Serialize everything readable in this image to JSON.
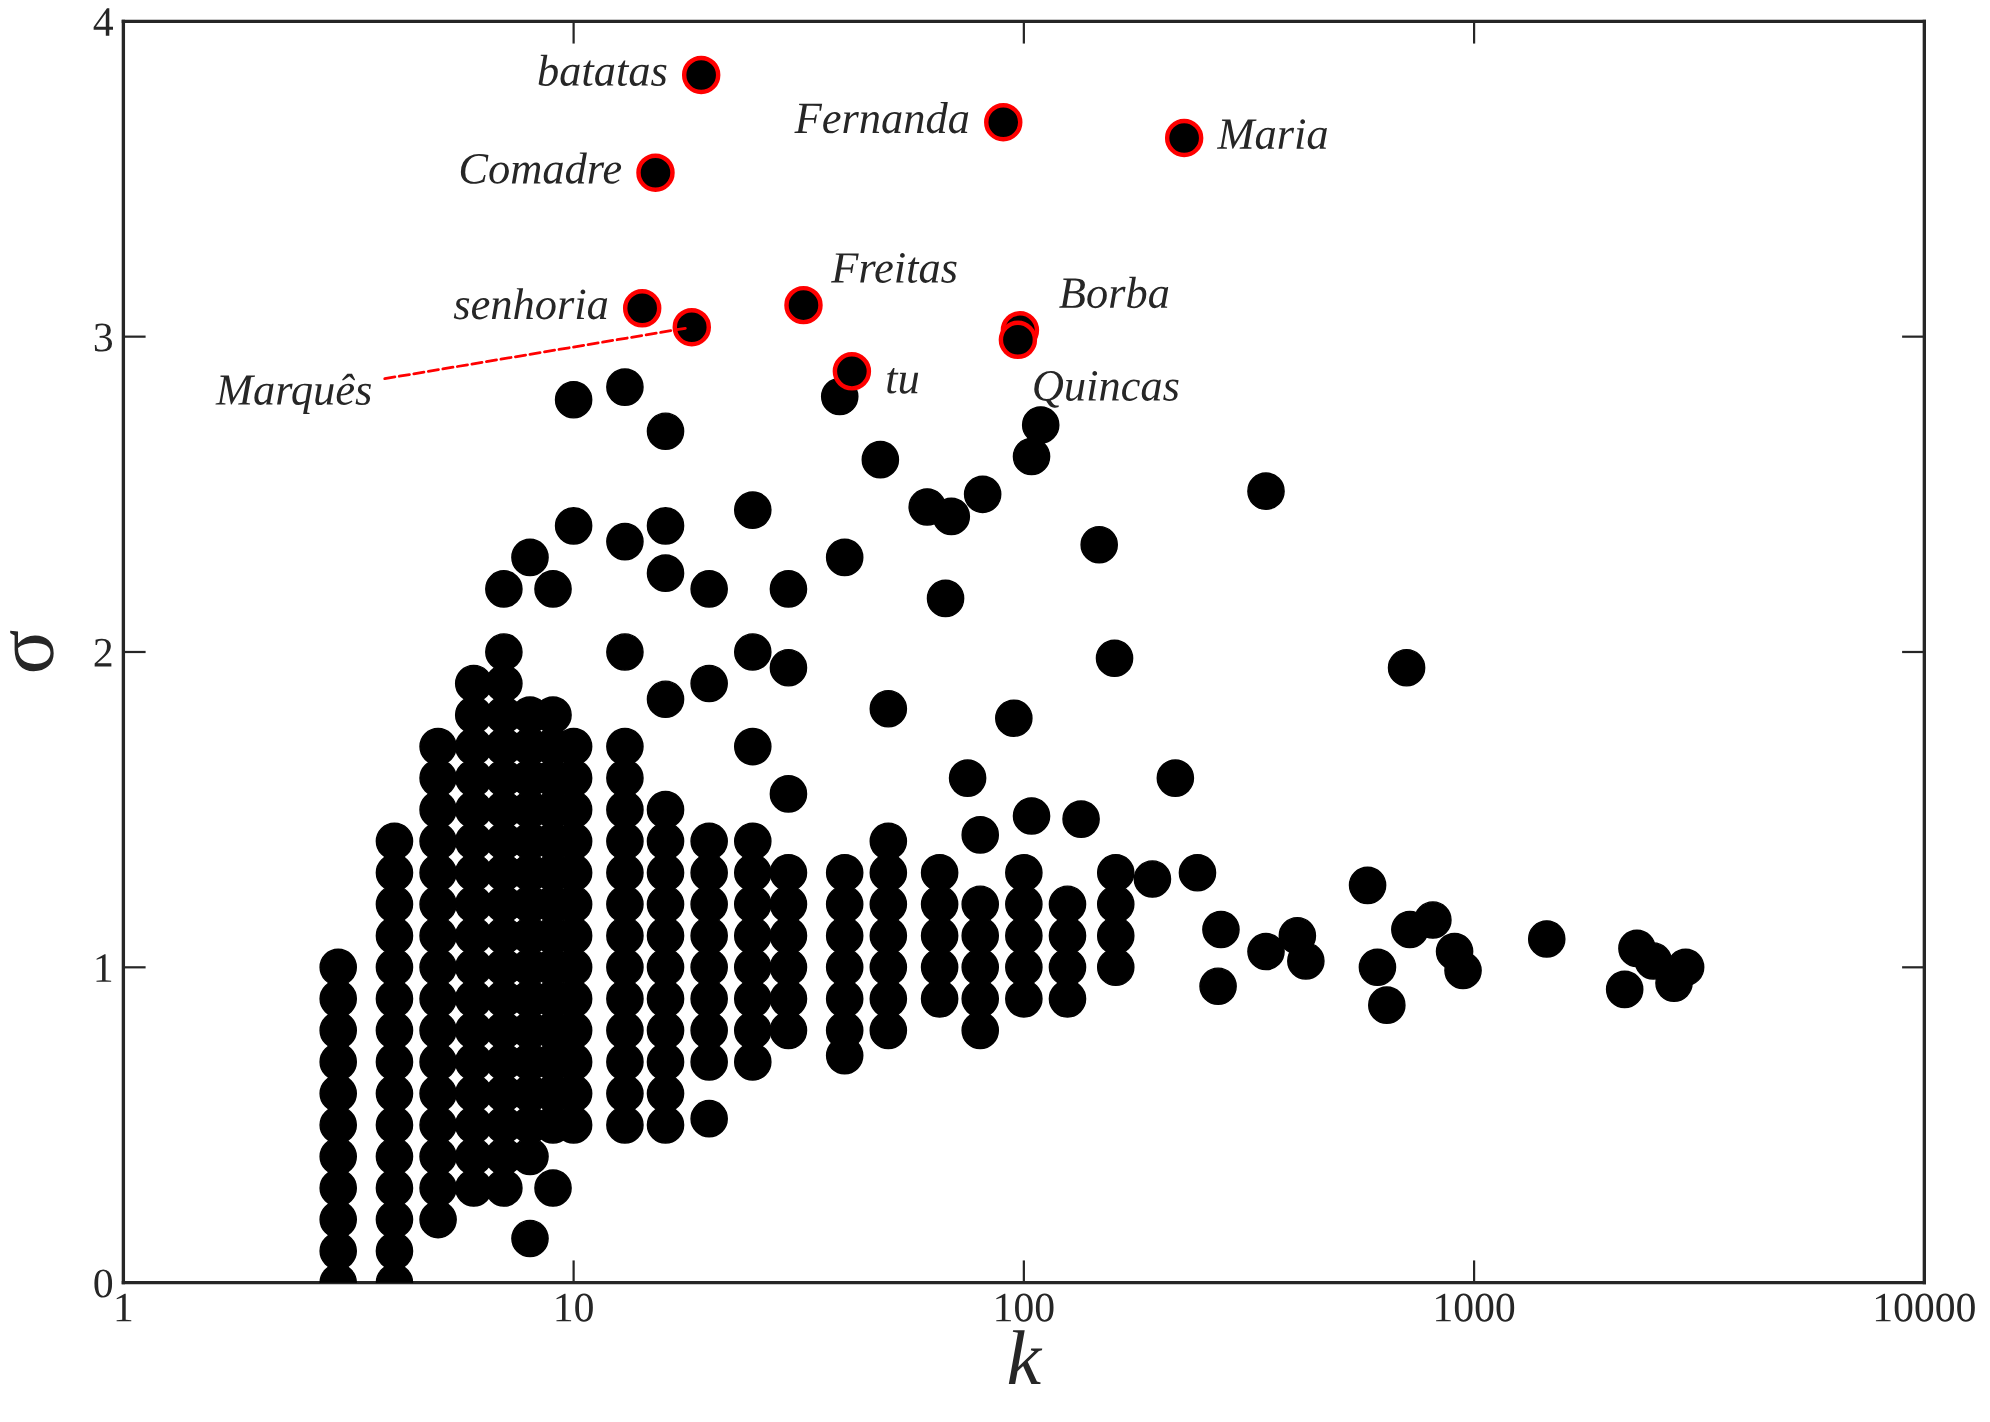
{
  "chart_data": {
    "type": "scatter",
    "xlabel": "k",
    "ylabel": "σ",
    "log": "x",
    "xlim": [
      1,
      10000
    ],
    "xticks": [
      1,
      10,
      100,
      1000,
      10000
    ],
    "ylim": [
      0,
      4
    ],
    "yticks": [
      0,
      1,
      2,
      3,
      4
    ],
    "grid": false,
    "legend": false,
    "marker": "circle",
    "series": [
      {
        "color": "#000000",
        "x": [
          3,
          3,
          3,
          3,
          3,
          3,
          3,
          3,
          3,
          3,
          3
        ],
        "values": [
          0,
          0.1,
          0.2,
          0.3,
          0.4,
          0.5,
          0.6,
          0.7,
          0.8,
          0.9,
          1.0
        ]
      },
      {
        "color": "#000000",
        "x": [
          4,
          4,
          4,
          4,
          4,
          4,
          4,
          4,
          4,
          4,
          4,
          4,
          4,
          4,
          4
        ],
        "values": [
          0,
          0.1,
          0.2,
          0.3,
          0.4,
          0.5,
          0.6,
          0.7,
          0.8,
          0.9,
          1.0,
          1.1,
          1.2,
          1.3,
          1.4
        ]
      },
      {
        "color": "#000000",
        "x": [
          5,
          5,
          5,
          5,
          5,
          5,
          5,
          5,
          5,
          5,
          5,
          5,
          5,
          5,
          5,
          5
        ],
        "values": [
          0.2,
          0.3,
          0.4,
          0.5,
          0.6,
          0.7,
          0.8,
          0.9,
          1.0,
          1.1,
          1.2,
          1.3,
          1.4,
          1.5,
          1.6,
          1.7
        ]
      },
      {
        "color": "#000000",
        "x": [
          6,
          6,
          6,
          6,
          6,
          6,
          6,
          6,
          6,
          6,
          6,
          6,
          6,
          6,
          6,
          6,
          6
        ],
        "values": [
          0.3,
          0.4,
          0.5,
          0.6,
          0.7,
          0.8,
          0.9,
          1.0,
          1.1,
          1.2,
          1.3,
          1.4,
          1.5,
          1.6,
          1.7,
          1.8,
          1.9
        ]
      },
      {
        "color": "#000000",
        "x": [
          7,
          7,
          7,
          7,
          7,
          7,
          7,
          7,
          7,
          7,
          7,
          7,
          7,
          7,
          7,
          7,
          7,
          7,
          7
        ],
        "values": [
          0.3,
          0.4,
          0.5,
          0.6,
          0.7,
          0.8,
          0.9,
          1.0,
          1.1,
          1.2,
          1.3,
          1.4,
          1.5,
          1.6,
          1.7,
          1.8,
          1.9,
          2.0,
          2.2
        ]
      },
      {
        "color": "#000000",
        "x": [
          8,
          8,
          8,
          8,
          8,
          8,
          8,
          8,
          8,
          8,
          8,
          8,
          8,
          8,
          8,
          8,
          8
        ],
        "values": [
          0.14,
          0.4,
          0.5,
          0.6,
          0.7,
          0.8,
          0.9,
          1.0,
          1.1,
          1.2,
          1.3,
          1.4,
          1.5,
          1.6,
          1.7,
          1.8,
          2.3
        ]
      },
      {
        "color": "#000000",
        "x": [
          9,
          9,
          9,
          9,
          9,
          9,
          9,
          9,
          9,
          9,
          9,
          9,
          9,
          9,
          9,
          9
        ],
        "values": [
          0.3,
          0.5,
          0.6,
          0.7,
          0.8,
          0.9,
          1.0,
          1.1,
          1.2,
          1.3,
          1.4,
          1.5,
          1.6,
          1.7,
          1.8,
          2.2
        ]
      },
      {
        "color": "#000000",
        "x": [
          10,
          10,
          10,
          10,
          10,
          10,
          10,
          10,
          10,
          10,
          10,
          10,
          10,
          10,
          10
        ],
        "values": [
          0.5,
          0.6,
          0.7,
          0.8,
          0.9,
          1.0,
          1.1,
          1.2,
          1.3,
          1.4,
          1.5,
          1.6,
          1.7,
          2.4,
          2.8
        ]
      },
      {
        "color": "#000000",
        "x": [
          13,
          13,
          13,
          13,
          13,
          13,
          13,
          13,
          13,
          13,
          13,
          13,
          13,
          13,
          13,
          13
        ],
        "values": [
          0.5,
          0.6,
          0.7,
          0.8,
          0.9,
          1.0,
          1.1,
          1.2,
          1.3,
          1.4,
          1.5,
          1.6,
          1.7,
          2.0,
          2.35,
          2.84
        ]
      },
      {
        "color": "#000000",
        "x": [
          16,
          16,
          16,
          16,
          16,
          16,
          16,
          16,
          16,
          16,
          16,
          16,
          16,
          16,
          16
        ],
        "values": [
          0.5,
          0.6,
          0.7,
          0.8,
          0.9,
          1.0,
          1.1,
          1.2,
          1.3,
          1.4,
          1.5,
          1.85,
          2.25,
          2.4,
          2.7
        ]
      },
      {
        "color": "#000000",
        "x": [
          20,
          20,
          20,
          20,
          20,
          20,
          20,
          20,
          20,
          20,
          20
        ],
        "values": [
          0.52,
          0.7,
          0.8,
          0.9,
          1.0,
          1.1,
          1.2,
          1.3,
          1.4,
          1.9,
          2.2
        ]
      },
      {
        "color": "#000000",
        "x": [
          25,
          25,
          25,
          25,
          25,
          25,
          25,
          25,
          25,
          25,
          25
        ],
        "values": [
          0.7,
          0.8,
          0.9,
          1.0,
          1.1,
          1.2,
          1.3,
          1.4,
          1.7,
          2.0,
          2.45
        ]
      },
      {
        "color": "#000000",
        "x": [
          30,
          30,
          30,
          30,
          30,
          30,
          30,
          30,
          30
        ],
        "values": [
          0.8,
          0.9,
          1.0,
          1.1,
          1.2,
          1.3,
          1.55,
          1.95,
          2.2
        ]
      },
      {
        "color": "#000000",
        "x": [
          40,
          40,
          40,
          40,
          40,
          40,
          40,
          40
        ],
        "values": [
          0.72,
          0.8,
          0.9,
          1.0,
          1.1,
          1.2,
          1.3,
          2.3
        ]
      },
      {
        "color": "#000000",
        "x": [
          50,
          50,
          50,
          50,
          50,
          50,
          50,
          50
        ],
        "values": [
          0.8,
          0.9,
          1.0,
          1.1,
          1.2,
          1.3,
          1.4,
          1.82
        ]
      },
      {
        "color": "#000000",
        "x": [
          65,
          65,
          65,
          65,
          65
        ],
        "values": [
          0.9,
          1.0,
          1.1,
          1.2,
          1.3
        ]
      },
      {
        "color": "#000000",
        "x": [
          80,
          80,
          80,
          80,
          80,
          80
        ],
        "values": [
          0.8,
          0.9,
          1.0,
          1.1,
          1.2,
          1.42
        ]
      },
      {
        "color": "#000000",
        "x": [
          100,
          100,
          100,
          100,
          100
        ],
        "values": [
          0.9,
          1.0,
          1.1,
          1.2,
          1.3
        ]
      },
      {
        "color": "#000000",
        "x": [
          125,
          125,
          125,
          125
        ],
        "values": [
          0.9,
          1.0,
          1.1,
          1.2
        ]
      },
      {
        "color": "#000000",
        "x": [
          160,
          160,
          160,
          160
        ],
        "values": [
          1.0,
          1.1,
          1.2,
          1.3
        ]
      },
      {
        "color": "#000000",
        "x": [
          39,
          48,
          61,
          69,
          81,
          104,
          109,
          147,
          159,
          345,
          708,
          67,
          95,
          217,
          75,
          104,
          134,
          193,
          243,
          274,
          270,
          345,
          405,
          423,
          580,
          610,
          640,
          720,
          810,
          905,
          945,
          1450,
          2160,
          2300,
          2500,
          2780,
          2950
        ],
        "values": [
          2.81,
          2.61,
          2.46,
          2.43,
          2.5,
          2.62,
          2.72,
          2.34,
          1.98,
          2.51,
          1.95,
          2.17,
          1.79,
          1.6,
          1.6,
          1.48,
          1.47,
          1.28,
          1.3,
          1.12,
          0.94,
          1.05,
          1.1,
          1.02,
          1.26,
          1.0,
          0.88,
          1.12,
          1.15,
          1.05,
          0.99,
          1.09,
          0.93,
          1.06,
          1.02,
          0.95,
          1.0
        ]
      },
      {
        "color": "#000000",
        "x": [
          19.2,
          90,
          227,
          15.2,
          14.2,
          18.3,
          32.4,
          98,
          97,
          41.5
        ],
        "values": [
          3.83,
          3.68,
          3.63,
          3.52,
          3.09,
          3.03,
          3.1,
          3.02,
          2.99,
          2.89
        ]
      }
    ],
    "annotations": [
      {
        "text": "batatas",
        "x": 19.2,
        "y": 3.83
      },
      {
        "text": "Fernanda",
        "x": 90,
        "y": 3.68
      },
      {
        "text": "Maria",
        "x": 227,
        "y": 3.63
      },
      {
        "text": "Comadre",
        "x": 15.2,
        "y": 3.52
      },
      {
        "text": "senhoria",
        "x": 14.2,
        "y": 3.09
      },
      {
        "text": "Marquês",
        "x": 18.3,
        "y": 3.03
      },
      {
        "text": "Freitas",
        "x": 32.4,
        "y": 3.1
      },
      {
        "text": "Borba",
        "x": 98,
        "y": 3.02
      },
      {
        "text": "Quincas",
        "x": 97,
        "y": 2.99
      },
      {
        "text": "tu",
        "x": 41.5,
        "y": 2.89
      }
    ]
  }
}
